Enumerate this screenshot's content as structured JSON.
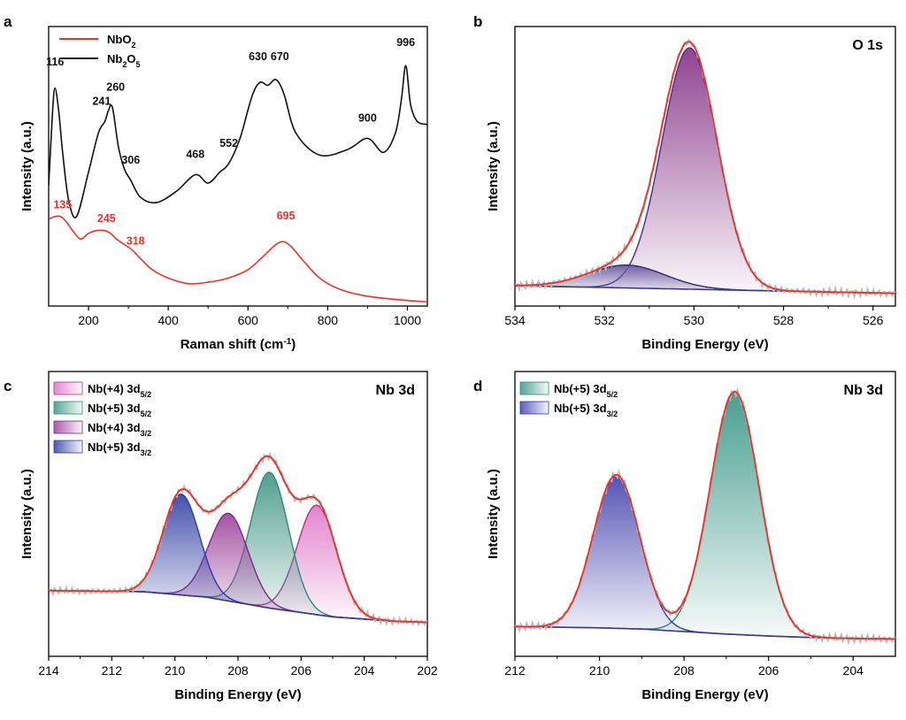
{
  "chart_data": [
    {
      "id": "a",
      "panel_label": "a",
      "type": "line",
      "xlabel": "Raman shift (cm",
      "xlabel_sup": "-1",
      "xlabel_end": ")",
      "ylabel": "Intensity (a.u.)",
      "xlim": [
        100,
        1050
      ],
      "ylim": [
        0,
        1
      ],
      "x_ticks": [
        200,
        400,
        600,
        800,
        1000
      ],
      "legend_position": "top-left",
      "series": [
        {
          "name": "NbO",
          "name_sub": "2",
          "color": "#e8322a",
          "x": [
            100,
            115,
            130,
            145,
            160,
            180,
            200,
            220,
            240,
            255,
            270,
            290,
            310,
            330,
            360,
            400,
            450,
            500,
            550,
            600,
            640,
            670,
            690,
            710,
            740,
            780,
            830,
            900,
            1000,
            1050
          ],
          "y": [
            0.31,
            0.32,
            0.32,
            0.3,
            0.27,
            0.24,
            0.26,
            0.27,
            0.27,
            0.26,
            0.24,
            0.22,
            0.2,
            0.17,
            0.13,
            0.1,
            0.08,
            0.085,
            0.1,
            0.13,
            0.18,
            0.22,
            0.23,
            0.21,
            0.16,
            0.1,
            0.06,
            0.035,
            0.02,
            0.015
          ]
        },
        {
          "name": "Nb",
          "name_sub": "2",
          "name_mid": "O",
          "name_sub2": "5",
          "color": "#111111",
          "x": [
            100,
            110,
            116,
            125,
            135,
            150,
            170,
            200,
            225,
            241,
            250,
            260,
            275,
            290,
            306,
            330,
            370,
            420,
            468,
            500,
            530,
            552,
            580,
            610,
            630,
            650,
            670,
            690,
            720,
            780,
            850,
            900,
            940,
            970,
            985,
            996,
            1008,
            1025,
            1050
          ],
          "y": [
            0.43,
            0.7,
            0.78,
            0.7,
            0.55,
            0.38,
            0.32,
            0.48,
            0.62,
            0.66,
            0.7,
            0.71,
            0.57,
            0.49,
            0.45,
            0.39,
            0.37,
            0.41,
            0.47,
            0.44,
            0.48,
            0.51,
            0.6,
            0.75,
            0.8,
            0.79,
            0.81,
            0.76,
            0.62,
            0.54,
            0.56,
            0.6,
            0.55,
            0.62,
            0.74,
            0.86,
            0.72,
            0.66,
            0.65
          ]
        }
      ],
      "annotations": [
        {
          "text": "116",
          "x": 116,
          "y": 0.86,
          "color": "#111111"
        },
        {
          "text": "241",
          "x": 233,
          "y": 0.72,
          "color": "#111111"
        },
        {
          "text": "260",
          "x": 268,
          "y": 0.77,
          "color": "#111111"
        },
        {
          "text": "306",
          "x": 306,
          "y": 0.51,
          "color": "#111111"
        },
        {
          "text": "468",
          "x": 468,
          "y": 0.53,
          "color": "#111111"
        },
        {
          "text": "552",
          "x": 552,
          "y": 0.57,
          "color": "#111111"
        },
        {
          "text": "630",
          "x": 625,
          "y": 0.88,
          "color": "#111111"
        },
        {
          "text": "670",
          "x": 680,
          "y": 0.88,
          "color": "#111111"
        },
        {
          "text": "900",
          "x": 900,
          "y": 0.66,
          "color": "#111111"
        },
        {
          "text": "996",
          "x": 996,
          "y": 0.93,
          "color": "#111111"
        },
        {
          "text": "135",
          "x": 135,
          "y": 0.35,
          "color": "#e8322a"
        },
        {
          "text": "245",
          "x": 245,
          "y": 0.3,
          "color": "#e8322a"
        },
        {
          "text": "318",
          "x": 318,
          "y": 0.22,
          "color": "#e8322a"
        },
        {
          "text": "695",
          "x": 695,
          "y": 0.31,
          "color": "#e8322a"
        }
      ]
    },
    {
      "id": "b",
      "panel_label": "b",
      "type": "area",
      "title": "O 1s",
      "xlabel": "Binding Energy (eV)",
      "ylabel": "Intensity (a.u.)",
      "xlim": [
        534,
        525.5
      ],
      "ylim": [
        -0.05,
        1.05
      ],
      "x_ticks": [
        534,
        532,
        530,
        528,
        526
      ],
      "baseline": {
        "x": [
          534,
          525.5
        ],
        "y": [
          0.03,
          0.0
        ]
      },
      "components": [
        {
          "center": 530.1,
          "height": 0.95,
          "sigma": 0.62,
          "line_color": "#4a2a8a",
          "fill_color": "#8a3a8a"
        },
        {
          "center": 531.5,
          "height": 0.09,
          "sigma": 0.85,
          "line_color": "#2a2a6a",
          "fill_color": "#6a5aa0"
        }
      ],
      "envelope_color": "#e8322a",
      "raw_color": "#bbbbbb"
    },
    {
      "id": "c",
      "panel_label": "c",
      "type": "area",
      "title": "Nb 3d",
      "xlabel": "Binding Energy (eV)",
      "ylabel": "Intensity (a.u.)",
      "xlim": [
        214,
        202
      ],
      "ylim": [
        -0.3,
        1.0
      ],
      "x_ticks": [
        214,
        212,
        210,
        208,
        206,
        204,
        202
      ],
      "legend_position": "top-left",
      "baseline": {
        "x": [
          214,
          211,
          209,
          207,
          205,
          203,
          202
        ],
        "y": [
          0.0,
          -0.005,
          -0.03,
          -0.08,
          -0.12,
          -0.14,
          -0.145
        ]
      },
      "components": [
        {
          "name": "Nb(+4) 3d",
          "name_sub": "5/2",
          "center": 205.5,
          "height": 0.5,
          "sigma": 0.62,
          "line_color": "#b0338a",
          "fill_color": "#e27ccb"
        },
        {
          "name": "Nb(+5) 3d",
          "name_sub": "5/2",
          "center": 207.0,
          "height": 0.62,
          "sigma": 0.6,
          "line_color": "#2d8a7a",
          "fill_color": "#4a9a8a"
        },
        {
          "name": "Nb(+4) 3d",
          "name_sub": "3/2",
          "center": 208.3,
          "height": 0.4,
          "sigma": 0.62,
          "line_color": "#7a2a8a",
          "fill_color": "#a04aa0"
        },
        {
          "name": "Nb(+5) 3d",
          "name_sub": "3/2",
          "center": 209.8,
          "height": 0.46,
          "sigma": 0.58,
          "line_color": "#2a3aa8",
          "fill_color": "#3a48a8"
        }
      ],
      "envelope_color": "#e8322a",
      "raw_color": "#bbbbbb"
    },
    {
      "id": "d",
      "panel_label": "d",
      "type": "area",
      "title": "Nb 3d",
      "xlabel": "Binding Energy (eV)",
      "ylabel": "Intensity (a.u.)",
      "xlim": [
        212,
        203
      ],
      "ylim": [
        -0.1,
        1.05
      ],
      "x_ticks": [
        212,
        210,
        208,
        206,
        204
      ],
      "legend_position": "top-left",
      "baseline": {
        "x": [
          212,
          210,
          209,
          208,
          207,
          206,
          205,
          204,
          203
        ],
        "y": [
          0.02,
          0.015,
          0.01,
          0.0,
          -0.01,
          -0.018,
          -0.024,
          -0.028,
          -0.03
        ]
      },
      "components": [
        {
          "name": "Nb(+5) 3d",
          "name_sub": "5/2",
          "center": 206.8,
          "height": 0.98,
          "sigma": 0.58,
          "line_color": "#2d8a7a",
          "fill_color": "#3f9a8a"
        },
        {
          "name": "Nb(+5) 3d",
          "name_sub": "3/2",
          "center": 209.6,
          "height": 0.62,
          "sigma": 0.55,
          "line_color": "#2a3aa8",
          "fill_color": "#4a4ab0"
        }
      ],
      "envelope_color": "#e8322a",
      "raw_color": "#bbbbbb"
    }
  ]
}
